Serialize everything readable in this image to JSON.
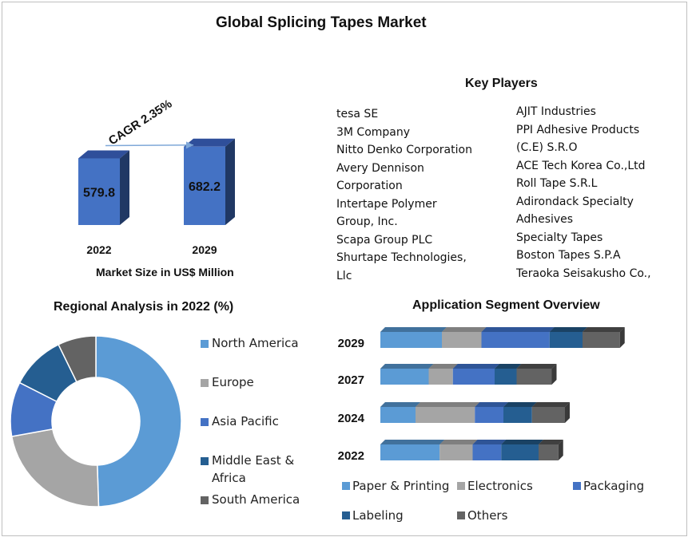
{
  "title": "Global Splicing Tapes Market",
  "market_size": {
    "caption": "Market Size in US$ Million",
    "cagr": "CAGR 2.35%",
    "bars": [
      {
        "year": "2022",
        "value": 579.8,
        "label": "579.8"
      },
      {
        "year": "2029",
        "value": 682.2,
        "label": "682.2"
      }
    ]
  },
  "key_players": {
    "title": "Key Players",
    "col1": [
      "tesa SE",
      "3M Company",
      "Nitto Denko Corporation",
      "Avery Dennison",
      "Corporation",
      "Intertape Polymer",
      "Group,  Inc.",
      "Scapa Group  PLC",
      "Shurtape  Technologies,",
      "Llc"
    ],
    "col2": [
      "AJIT Industries",
      "PPI Adhesive  Products",
      "(C.E) S.R.O",
      "ACE Tech Korea Co.,Ltd",
      "Roll Tape S.R.L",
      "Adirondack  Specialty",
      "Adhesives",
      "Specialty  Tapes",
      "Boston Tapes S.P.A",
      "Teraoka  Seisakusho  Co.,"
    ]
  },
  "regional": {
    "title": "Regional Analysis in 2022 (%)",
    "colors": [
      "#5b9bd5",
      "#a5a5a5",
      "#4472c4",
      "#255e91",
      "#636363"
    ],
    "legend": [
      "North America",
      "Europe",
      "Asia Pacific",
      "Middle East &",
      "Africa",
      "South America"
    ]
  },
  "application": {
    "title": "Application Segment Overview",
    "legend": [
      "Paper & Printing",
      "Electronics",
      "Packaging",
      "Labeling",
      "Others"
    ],
    "colors": [
      "#5b9bd5",
      "#a5a5a5",
      "#4472c4",
      "#255e91",
      "#636363"
    ]
  },
  "chart_data": [
    {
      "type": "bar",
      "title": "Market Size in US$ Million",
      "categories": [
        "2022",
        "2029"
      ],
      "values": [
        579.8,
        682.2
      ],
      "annotation": "CAGR 2.35%"
    },
    {
      "type": "pie",
      "title": "Regional Analysis in 2022 (%)",
      "categories": [
        "North America",
        "Europe",
        "Asia Pacific",
        "Middle East & Africa",
        "South America"
      ],
      "values": [
        48,
        22,
        10,
        10,
        7
      ]
    },
    {
      "type": "bar",
      "title": "Application Segment Overview",
      "categories": [
        "2029",
        "2027",
        "2024",
        "2022"
      ],
      "series": [
        {
          "name": "Paper & Printing",
          "values": [
            2.8,
            2.2,
            1.6,
            2.7
          ]
        },
        {
          "name": "Electronics",
          "values": [
            1.8,
            1.1,
            2.7,
            1.5
          ]
        },
        {
          "name": "Packaging",
          "values": [
            3.1,
            1.9,
            1.3,
            1.3
          ]
        },
        {
          "name": "Labeling",
          "values": [
            1.5,
            1.0,
            1.3,
            1.7
          ]
        },
        {
          "name": "Others",
          "values": [
            1.7,
            1.6,
            1.5,
            0.9
          ]
        }
      ]
    }
  ]
}
